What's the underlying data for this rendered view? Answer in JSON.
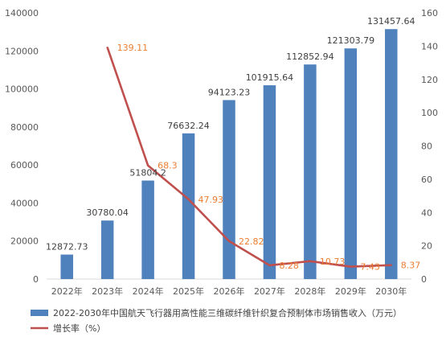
{
  "chart_data": {
    "type": "bar",
    "categories": [
      "2022年",
      "2023年",
      "2024年",
      "2025年",
      "2026年",
      "2027年",
      "2028年",
      "2029年",
      "2030年"
    ],
    "series": [
      {
        "name": "2022-2030年中国航天飞行器用高性能三维碳纤维针织复合预制体市场销售收入（万元）",
        "type": "bar",
        "axis": "left",
        "color": "#4F81BD",
        "values": [
          12872.73,
          30780.04,
          51804.2,
          76632.24,
          94123.23,
          101915.64,
          112852.94,
          121303.79,
          131457.64
        ],
        "labels": [
          "12872.73",
          "30780.04",
          "51804.2",
          "76632.24",
          "94123.23",
          "101915.64",
          "112852.94",
          "121303.79",
          "131457.64"
        ]
      },
      {
        "name": "增长率（%）",
        "type": "line",
        "axis": "right",
        "color": "#C0504D",
        "label_color": "#ED7D31",
        "values": [
          null,
          139.11,
          68.3,
          47.93,
          22.82,
          8.28,
          10.73,
          7.43,
          8.37
        ],
        "labels": [
          "",
          "139.11",
          "68.3",
          "47.93",
          "22.82",
          "8.28",
          "10.73",
          "7.43",
          "8.37"
        ]
      }
    ],
    "y_left": {
      "range": [
        0,
        140000
      ],
      "ticks": [
        0,
        20000,
        40000,
        60000,
        80000,
        100000,
        120000,
        140000
      ],
      "tick_labels": [
        "0",
        "20000",
        "40000",
        "60000",
        "80000",
        "100000",
        "120000",
        "140000"
      ]
    },
    "y_right": {
      "range": [
        0,
        160
      ],
      "ticks": [
        0,
        20,
        40,
        60,
        80,
        100,
        120,
        140,
        160
      ],
      "tick_labels": [
        "0",
        "20",
        "40",
        "60",
        "80",
        "100",
        "120",
        "140",
        "160"
      ]
    },
    "grid": false,
    "legend_position": "bottom-left",
    "legend": [
      {
        "label": "2022-2030年中国航天飞行器用高性能三维碳纤维针织复合预制体市场销售收入（万元）",
        "color": "#4F81BD",
        "kind": "bar"
      },
      {
        "label": "增长率（%）",
        "color": "#C0504D",
        "kind": "line"
      }
    ]
  }
}
